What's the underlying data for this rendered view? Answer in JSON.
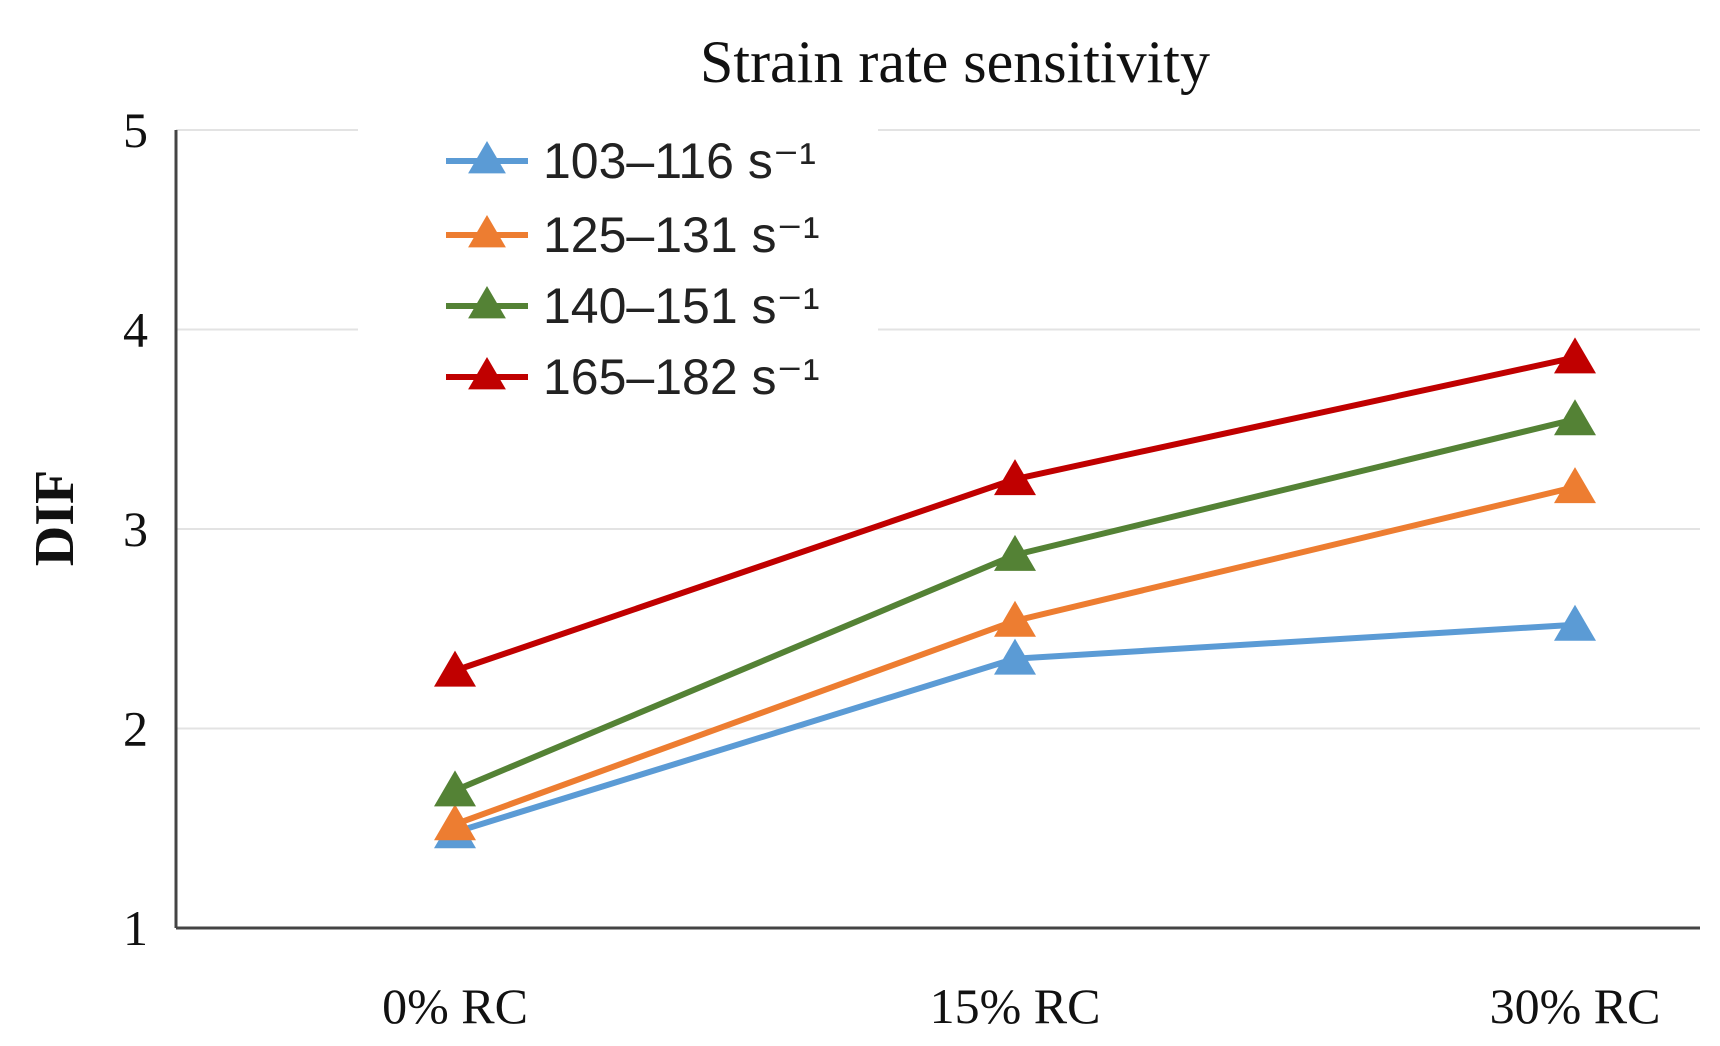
{
  "chart_data": {
    "type": "line",
    "title": "Strain rate sensitivity",
    "xlabel": "",
    "ylabel": "DIF",
    "categories": [
      "0% RC",
      "15% RC",
      "30% RC"
    ],
    "ylim": [
      1,
      5
    ],
    "yticks": [
      1,
      2,
      3,
      4,
      5
    ],
    "ytick_labels": [
      "1",
      "2",
      "3",
      "4",
      "5"
    ],
    "grid": true,
    "legend_position": "top-left",
    "marker": "triangle",
    "series": [
      {
        "name": "103–116 s⁻¹",
        "color": "#5b9bd5",
        "values": [
          1.48,
          2.35,
          2.52
        ]
      },
      {
        "name": "125–131 s⁻¹",
        "color": "#ed7d31",
        "values": [
          1.52,
          2.54,
          3.21
        ]
      },
      {
        "name": "140–151 s⁻¹",
        "color": "#548235",
        "values": [
          1.69,
          2.87,
          3.55
        ]
      },
      {
        "name": "165–182 s⁻¹",
        "color": "#c00000",
        "values": [
          2.29,
          3.25,
          3.86
        ]
      }
    ]
  }
}
